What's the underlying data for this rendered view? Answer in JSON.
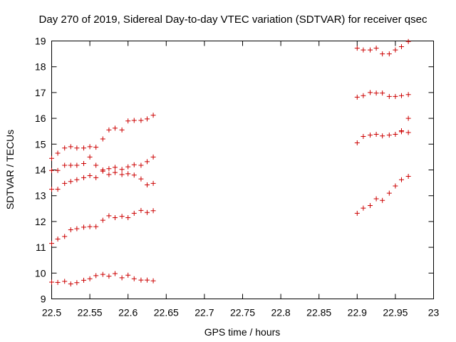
{
  "chart_data": {
    "type": "scatter",
    "title": "Day 270 of 2019, Sidereal Day-to-day VTEC variation (SDTVAR) for receiver qsec",
    "xlabel": "GPS time / hours",
    "ylabel": "SDTVAR / TECUs",
    "xlim": [
      22.5,
      23.0
    ],
    "ylim": [
      9,
      19
    ],
    "xticks": [
      "22.5",
      "22.55",
      "22.6",
      "22.65",
      "22.7",
      "22.75",
      "22.8",
      "22.85",
      "22.9",
      "22.95",
      "23"
    ],
    "yticks": [
      "9",
      "10",
      "11",
      "12",
      "13",
      "14",
      "15",
      "16",
      "17",
      "18",
      "19"
    ],
    "grid": false,
    "marker": "+",
    "color": "#cc0000",
    "series": [
      {
        "name": "series-1",
        "x": [
          22.5,
          22.508,
          22.517,
          22.525,
          22.533,
          22.542,
          22.55,
          22.558,
          22.567,
          22.575,
          22.583,
          22.592,
          22.6,
          22.608,
          22.617,
          22.625,
          22.633
        ],
        "y": [
          9.65,
          9.64,
          9.68,
          9.58,
          9.63,
          9.72,
          9.78,
          9.9,
          9.95,
          9.88,
          9.98,
          9.82,
          9.92,
          9.78,
          9.73,
          9.73,
          9.7
        ]
      },
      {
        "name": "series-2",
        "x": [
          22.5,
          22.508,
          22.517,
          22.525,
          22.533,
          22.542,
          22.55,
          22.558,
          22.567,
          22.575,
          22.583,
          22.592,
          22.6,
          22.608,
          22.617,
          22.625,
          22.633,
          22.9,
          22.908,
          22.917,
          22.925,
          22.933,
          22.942,
          22.95,
          22.958,
          22.967
        ],
        "y": [
          11.15,
          11.32,
          11.42,
          11.68,
          11.72,
          11.78,
          11.8,
          11.8,
          12.05,
          12.22,
          12.15,
          12.2,
          12.15,
          12.32,
          12.43,
          12.35,
          12.42,
          12.32,
          12.52,
          12.62,
          12.88,
          12.82,
          13.1,
          13.38,
          13.62,
          13.75
        ]
      },
      {
        "name": "series-3",
        "x": [
          22.5,
          22.508,
          22.517,
          22.525,
          22.533,
          22.542,
          22.55,
          22.558,
          22.567,
          22.575,
          22.583,
          22.592,
          22.6,
          22.608,
          22.617,
          22.625,
          22.633
        ],
        "y": [
          13.25,
          13.25,
          13.48,
          13.55,
          13.62,
          13.7,
          13.78,
          13.7,
          13.95,
          13.82,
          13.9,
          13.82,
          13.85,
          13.8,
          13.65,
          13.42,
          13.48
        ]
      },
      {
        "name": "series-4",
        "x": [
          22.5,
          22.508,
          22.517,
          22.525,
          22.533,
          22.542,
          22.55,
          22.558,
          22.567,
          22.575,
          22.583,
          22.592,
          22.6,
          22.608,
          22.617,
          22.625,
          22.633
        ],
        "y": [
          13.98,
          13.98,
          14.18,
          14.18,
          14.18,
          14.25,
          14.5,
          14.18,
          14.0,
          14.05,
          14.1,
          14.02,
          14.12,
          14.2,
          14.18,
          14.32,
          14.5
        ]
      },
      {
        "name": "series-5",
        "x": [
          22.5,
          22.508,
          22.517,
          22.525,
          22.533,
          22.542,
          22.55,
          22.558,
          22.567,
          22.575,
          22.583,
          22.592,
          22.6,
          22.608,
          22.617,
          22.625,
          22.633,
          22.9,
          22.908,
          22.917,
          22.925,
          22.933,
          22.942,
          22.95,
          22.958,
          22.967
        ],
        "y": [
          14.45,
          14.65,
          14.85,
          14.9,
          14.85,
          14.85,
          14.9,
          14.88,
          15.2,
          15.55,
          15.62,
          15.55,
          15.9,
          15.92,
          15.92,
          15.98,
          16.12,
          15.05,
          15.3,
          15.35,
          15.38,
          15.32,
          15.35,
          15.38,
          15.48,
          15.45
        ]
      },
      {
        "name": "series-6",
        "x": [
          22.9,
          22.908,
          22.917,
          22.925,
          22.933,
          22.942,
          22.95,
          22.958,
          22.967,
          22.958,
          22.967
        ],
        "y": [
          16.82,
          16.88,
          17.0,
          16.98,
          16.98,
          16.85,
          16.85,
          16.88,
          16.92,
          15.52,
          16.0
        ]
      },
      {
        "name": "series-7",
        "x": [
          22.9,
          22.908,
          22.917,
          22.925,
          22.933,
          22.942,
          22.95,
          22.958,
          22.967
        ],
        "y": [
          18.72,
          18.65,
          18.65,
          18.72,
          18.5,
          18.5,
          18.65,
          18.78,
          18.98
        ]
      }
    ]
  }
}
